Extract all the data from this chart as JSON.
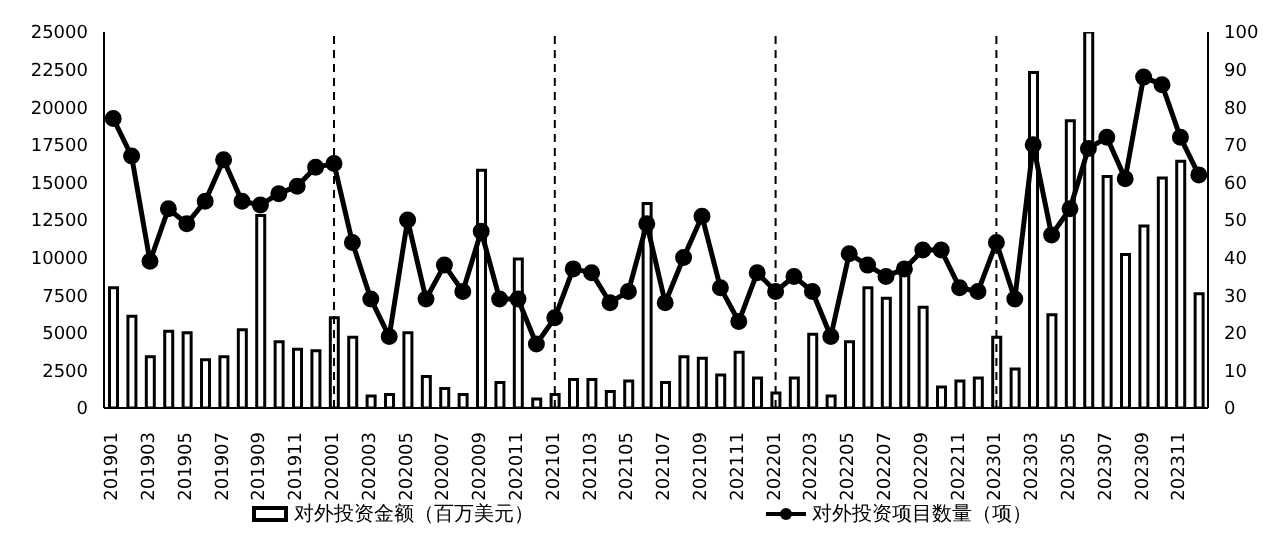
{
  "chart_data": {
    "type": "bar",
    "categories": [
      "201901",
      null,
      "201903",
      null,
      "201905",
      null,
      "201907",
      null,
      "201909",
      null,
      "201911",
      null,
      "202001",
      null,
      "202003",
      null,
      "202005",
      null,
      "202007",
      null,
      "202009",
      null,
      "202011",
      null,
      "202101",
      null,
      "202103",
      null,
      "202105",
      null,
      "202107",
      null,
      "202109",
      null,
      "202111",
      null,
      "202201",
      null,
      "202203",
      null,
      "202205",
      null,
      "202207",
      null,
      "202209",
      null,
      "202211",
      null,
      "202301",
      null,
      "202303",
      null,
      "202305",
      null,
      "202307",
      null,
      "202309",
      null,
      "202311",
      null
    ],
    "series": [
      {
        "name": "对外投资金额（百万美元）",
        "color": "#000000",
        "values": [
          8000,
          6100,
          3400,
          5100,
          5000,
          3200,
          3400,
          5200,
          12800,
          4400,
          3900,
          3800,
          6000,
          4700,
          800,
          900,
          5000,
          2100,
          1300,
          900,
          15800,
          1700,
          9900,
          600,
          900,
          1900,
          1900,
          1100,
          1800,
          13600,
          1700,
          3400,
          3300,
          2200,
          3700,
          2000,
          1000,
          2000,
          4900,
          800,
          4400,
          8000,
          7300,
          8900,
          6700,
          1400,
          1800,
          2000,
          4700,
          2600,
          22300,
          6200,
          19100,
          25000,
          15400,
          10200,
          12100,
          15300,
          16400,
          7600
        ]
      },
      {
        "name": "对外投资项目数量（项）",
        "type": "line",
        "axis": "y2",
        "color": "#000000",
        "values": [
          77,
          67,
          39,
          53,
          49,
          55,
          66,
          55,
          54,
          57,
          59,
          64,
          65,
          44,
          29,
          19,
          50,
          29,
          38,
          31,
          47,
          29,
          29,
          17,
          24,
          37,
          36,
          28,
          31,
          49,
          28,
          40,
          51,
          32,
          23,
          36,
          31,
          35,
          31,
          19,
          41,
          38,
          35,
          37,
          42,
          42,
          32,
          31,
          44,
          29,
          70,
          46,
          53,
          69,
          72,
          61,
          88,
          86,
          72,
          62
        ]
      }
    ],
    "ylim": [
      0,
      25000
    ],
    "yticks": [
      0,
      2500,
      5000,
      7500,
      10000,
      12500,
      15000,
      17500,
      20000,
      22500,
      25000
    ],
    "y2lim": [
      0,
      100
    ],
    "y2ticks": [
      0,
      10,
      20,
      30,
      40,
      50,
      60,
      70,
      80,
      90,
      100
    ],
    "ref_lines": [
      {
        "axis": "x",
        "value": "202001",
        "line_style": "dashed",
        "color": "#000000"
      },
      {
        "axis": "x",
        "value": "202101",
        "line_style": "dashed",
        "color": "#000000"
      },
      {
        "axis": "x",
        "value": "202201",
        "line_style": "dashed",
        "color": "#000000"
      },
      {
        "axis": "x",
        "value": "202301",
        "line_style": "dashed",
        "color": "#000000"
      }
    ],
    "marker": "circle",
    "line_style": "solid",
    "grid": false,
    "legend": "bottom"
  }
}
